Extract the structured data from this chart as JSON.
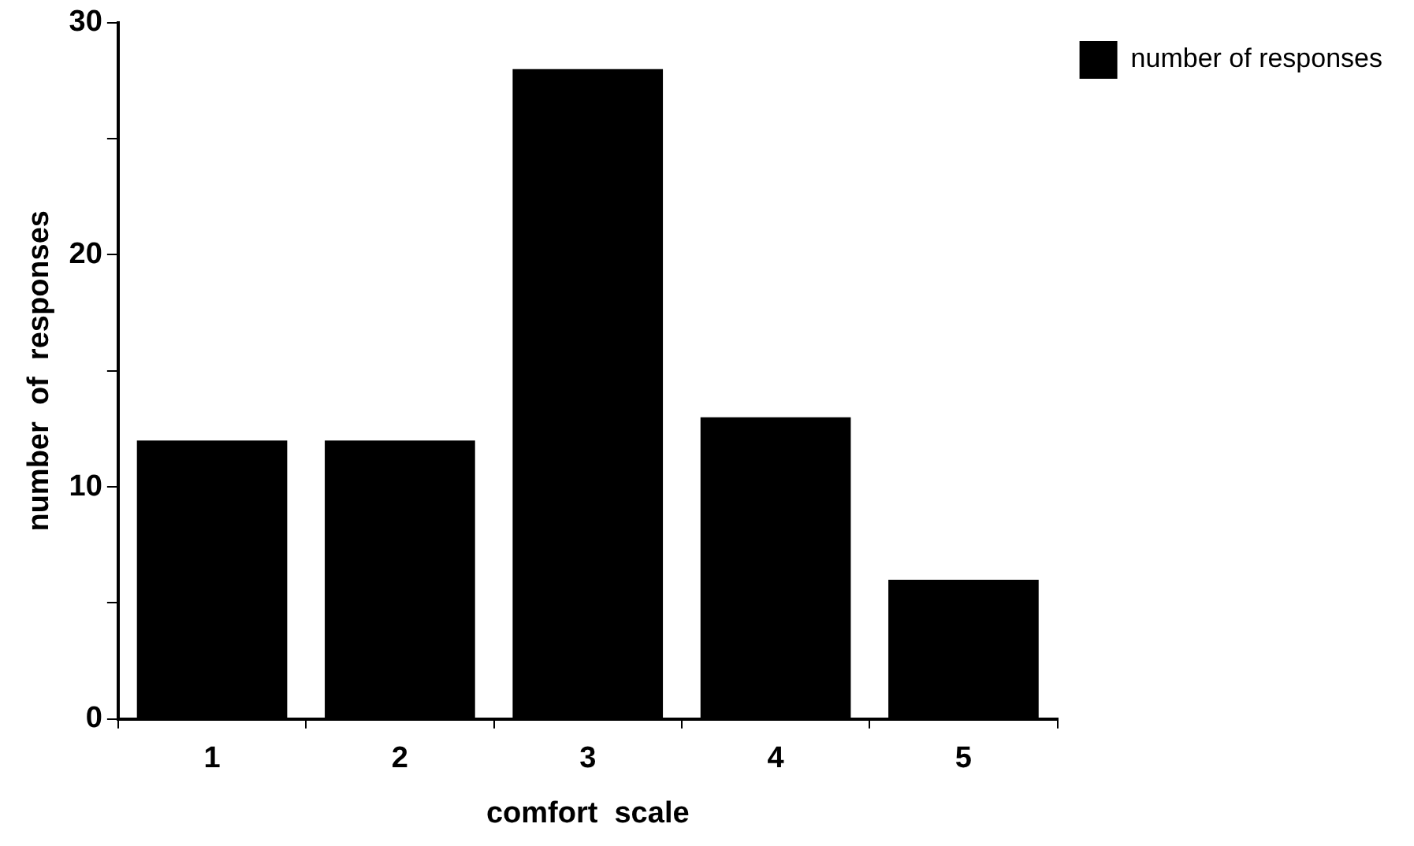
{
  "chart_data": {
    "type": "bar",
    "xlabel": "comfort  scale",
    "ylabel": "number  of  responses",
    "categories": [
      "1",
      "2",
      "3",
      "4",
      "5"
    ],
    "series": [
      {
        "name": "number of responses",
        "color": "#000000",
        "values": [
          12,
          12,
          28,
          13,
          6
        ]
      }
    ],
    "ylim": [
      0,
      30
    ],
    "yticks": [
      0,
      {
        "value": 5,
        "label": null
      },
      10,
      {
        "value": 15,
        "label": null
      },
      20,
      {
        "value": 25,
        "label": null
      },
      30
    ],
    "grid": false,
    "legend": "right"
  }
}
